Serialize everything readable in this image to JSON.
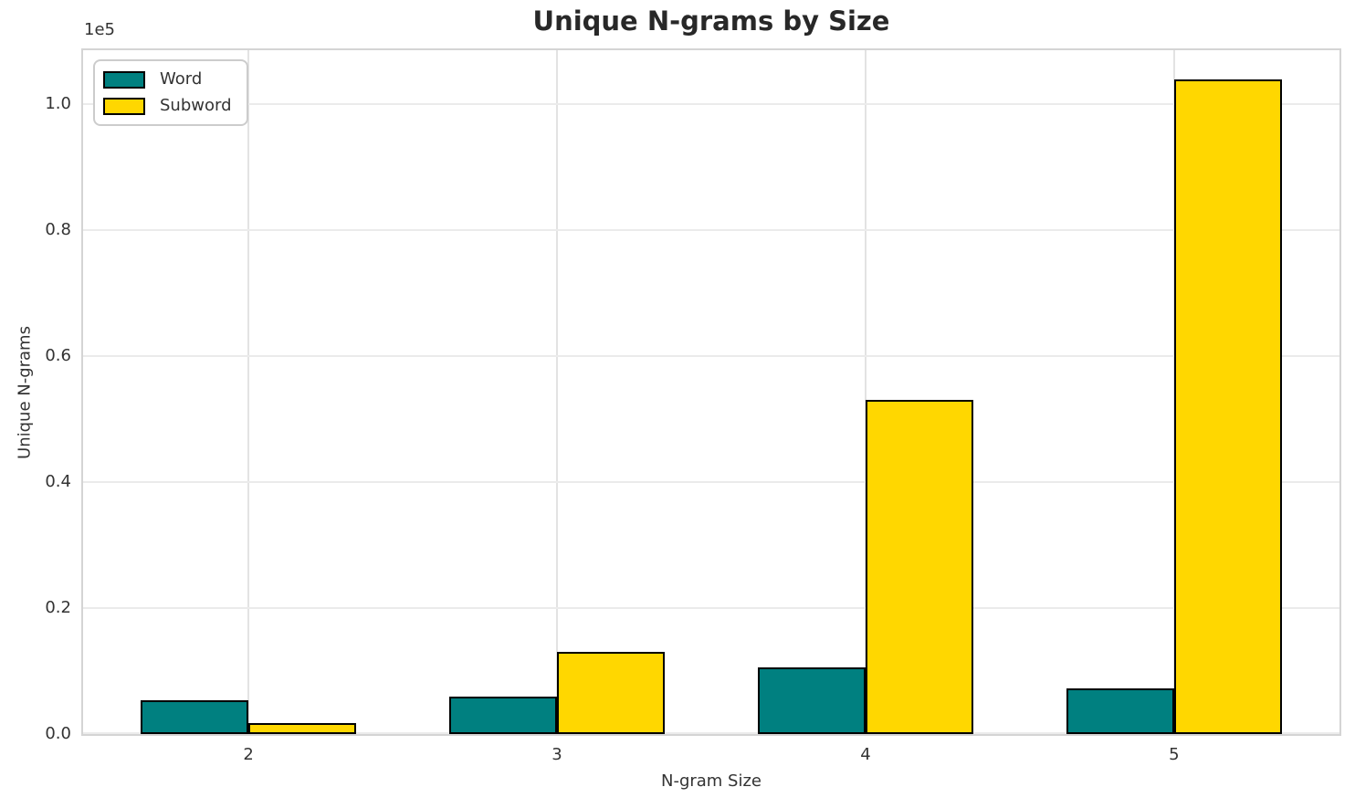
{
  "chart_data": {
    "type": "bar",
    "title": "Unique N-grams by Size",
    "xlabel": "N-gram Size",
    "ylabel": "Unique N-grams",
    "y_offset_text": "1e5",
    "categories": [
      "2",
      "3",
      "4",
      "5"
    ],
    "series": [
      {
        "name": "Word",
        "color": "#008080",
        "values": [
          5400,
          6000,
          10600,
          7200
        ]
      },
      {
        "name": "Subword",
        "color": "#FFD700",
        "values": [
          1800,
          13000,
          53100,
          104000
        ]
      }
    ],
    "bar_edge_color": "#000000",
    "bar_width_fraction": 0.35,
    "ylim": [
      0,
      108600
    ],
    "yticks": [
      0,
      20000,
      40000,
      60000,
      80000,
      100000
    ],
    "ytick_labels": [
      "0.0",
      "0.2",
      "0.4",
      "0.6",
      "0.8",
      "1.0"
    ],
    "grid": true,
    "legend_position": "upper left",
    "legend_labels": [
      "Word",
      "Subword"
    ]
  }
}
